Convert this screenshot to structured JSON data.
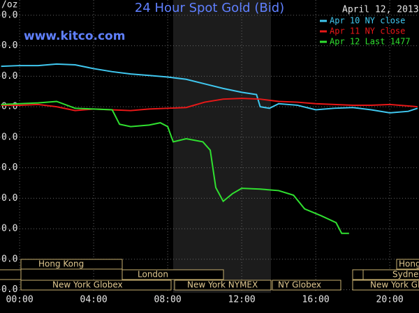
{
  "chart_data": {
    "type": "line",
    "title": "24 Hour Spot Gold (Bid)",
    "date": "April 12, 2013",
    "watermark": "www.kitco.com",
    "y_label": "/oz",
    "xlim": [
      -1.06,
      21.58
    ],
    "xticks": [
      {
        "value": 0,
        "label": "00:00"
      },
      {
        "value": 4,
        "label": "04:00"
      },
      {
        "value": 8,
        "label": "08:00"
      },
      {
        "value": 12,
        "label": "12:00"
      },
      {
        "value": 16,
        "label": "16:00"
      },
      {
        "value": 20,
        "label": "20:00"
      }
    ],
    "ylim": [
      1438,
      1630
    ],
    "yticks": [
      {
        "value": 1620,
        "label": "0.0"
      },
      {
        "value": 1600,
        "label": "0.0"
      },
      {
        "value": 1580,
        "label": "0.0"
      },
      {
        "value": 1560,
        "label": "0.0"
      },
      {
        "value": 1540,
        "label": "0.0"
      },
      {
        "value": 1520,
        "label": "0.0"
      },
      {
        "value": 1500,
        "label": "0.0"
      },
      {
        "value": 1480,
        "label": "0.0"
      },
      {
        "value": 1460,
        "label": "0.0"
      },
      {
        "value": 1440,
        "label": "0.0"
      }
    ],
    "grid": true,
    "series": [
      {
        "name": "Apr 10 NY close",
        "color": "#40c8f0",
        "x": [
          -1,
          0,
          1,
          2,
          3,
          4,
          5,
          6,
          7,
          8,
          9,
          10,
          11,
          12,
          12.8,
          13,
          13.5,
          14,
          15,
          16,
          17,
          18,
          19,
          20,
          21,
          21.5
        ],
        "values": [
          1586.5,
          1587,
          1587,
          1588,
          1587.5,
          1585,
          1583,
          1581.5,
          1580.5,
          1579.5,
          1578,
          1575,
          1572,
          1569.5,
          1568,
          1560,
          1559,
          1562,
          1561,
          1558,
          1559,
          1559.5,
          1558,
          1556,
          1557,
          1559
        ]
      },
      {
        "name": "Apr 11 NY close",
        "color": "#e81818",
        "x": [
          -1,
          0,
          1,
          2,
          3,
          4,
          5,
          6,
          7,
          8,
          9,
          10,
          11,
          12,
          13,
          14,
          15,
          16,
          17,
          18,
          19,
          20,
          21,
          21.5
        ],
        "values": [
          1561,
          1561,
          1561.5,
          1560,
          1557.5,
          1558.5,
          1558,
          1557.5,
          1558.5,
          1559,
          1559.5,
          1563,
          1565,
          1565.5,
          1565,
          1563.5,
          1563,
          1562,
          1561.5,
          1561,
          1561,
          1561.5,
          1560.5,
          1560
        ]
      },
      {
        "name": "Apr 12 Last 1477",
        "color": "#30e030",
        "x": [
          -1,
          0,
          1,
          2,
          3,
          4,
          5,
          5.4,
          6,
          7,
          7.6,
          8,
          8.3,
          9,
          9.9,
          10.3,
          10.6,
          11,
          11.5,
          12,
          13,
          14,
          14.8,
          15.4,
          16.3,
          17.1,
          17.4,
          17.8
        ],
        "values": [
          1561.5,
          1562,
          1562.5,
          1563.5,
          1559,
          1558.5,
          1558,
          1548.5,
          1547,
          1548,
          1549.5,
          1547,
          1537,
          1539,
          1537,
          1531.5,
          1507,
          1498,
          1503,
          1506.5,
          1506,
          1505,
          1502,
          1493,
          1488.5,
          1484,
          1477,
          1477
        ]
      }
    ],
    "sessions": [
      "Hong Kong",
      "London",
      "New York Globex",
      "New York NYMEX",
      "NY Globex",
      "Hong",
      "Sydney",
      "New York Globe"
    ]
  }
}
